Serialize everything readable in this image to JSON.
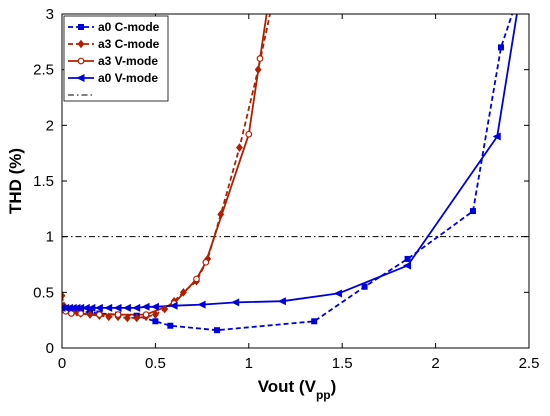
{
  "chart_data": {
    "type": "line",
    "xlabel_main": "Vout (V",
    "xlabel_sub": "pp",
    "xlabel_close": ")",
    "ylabel": "THD (%)",
    "xlim": [
      0,
      2.5
    ],
    "ylim": [
      0,
      3
    ],
    "xticks": [
      "0",
      "0.5",
      "1",
      "1.5",
      "2",
      "2.5"
    ],
    "yticks": [
      "0",
      "0.5",
      "1",
      "1.5",
      "2",
      "2.5",
      "3"
    ],
    "grid": false,
    "legend_position": "top-left",
    "reference_line": {
      "y": 1,
      "style": "dash-dot",
      "color": "#000000"
    },
    "series": [
      {
        "name": "a0 C-mode",
        "color": "#0000dd",
        "line_style": "dashed",
        "marker": "square",
        "x": [
          0.0,
          0.02,
          0.05,
          0.1,
          0.15,
          0.2,
          0.3,
          0.4,
          0.5,
          0.58,
          0.83,
          1.35,
          1.62,
          1.85,
          2.2,
          2.35,
          2.42
        ],
        "y": [
          0.35,
          0.34,
          0.33,
          0.33,
          0.32,
          0.31,
          0.3,
          0.29,
          0.24,
          0.2,
          0.16,
          0.24,
          0.55,
          0.8,
          1.23,
          2.7,
          3.05
        ]
      },
      {
        "name": "a3 C-mode",
        "color": "#b02000",
        "line_style": "dashed",
        "marker": "diamond",
        "x": [
          0.0,
          0.01,
          0.03,
          0.05,
          0.08,
          0.1,
          0.15,
          0.2,
          0.25,
          0.3,
          0.35,
          0.4,
          0.45,
          0.5,
          0.55,
          0.6,
          0.65,
          0.72,
          0.78,
          0.85,
          0.95,
          1.05,
          1.12
        ],
        "y": [
          0.47,
          0.38,
          0.35,
          0.33,
          0.32,
          0.31,
          0.3,
          0.29,
          0.28,
          0.28,
          0.27,
          0.27,
          0.28,
          0.3,
          0.35,
          0.42,
          0.5,
          0.6,
          0.8,
          1.2,
          1.8,
          2.5,
          3.05
        ]
      },
      {
        "name": "a3 V-mode",
        "color": "#b02000",
        "line_style": "solid",
        "marker": "circle",
        "x": [
          0.0,
          0.02,
          0.05,
          0.1,
          0.2,
          0.3,
          0.45,
          0.6,
          0.72,
          0.77,
          1.0,
          1.06,
          1.1
        ],
        "y": [
          0.36,
          0.33,
          0.31,
          0.31,
          0.3,
          0.3,
          0.3,
          0.4,
          0.62,
          0.77,
          1.92,
          2.6,
          3.05
        ]
      },
      {
        "name": "a0 V-mode",
        "color": "#0000dd",
        "line_style": "solid",
        "marker": "triangle-left",
        "x": [
          0.0,
          0.02,
          0.04,
          0.06,
          0.08,
          0.1,
          0.13,
          0.16,
          0.2,
          0.25,
          0.3,
          0.35,
          0.4,
          0.45,
          0.5,
          0.6,
          0.75,
          0.93,
          1.18,
          1.48,
          1.85,
          2.33,
          2.44
        ],
        "y": [
          0.36,
          0.36,
          0.36,
          0.36,
          0.36,
          0.36,
          0.36,
          0.36,
          0.36,
          0.36,
          0.36,
          0.36,
          0.36,
          0.37,
          0.37,
          0.38,
          0.39,
          0.41,
          0.42,
          0.49,
          0.74,
          1.9,
          3.05
        ]
      }
    ]
  }
}
